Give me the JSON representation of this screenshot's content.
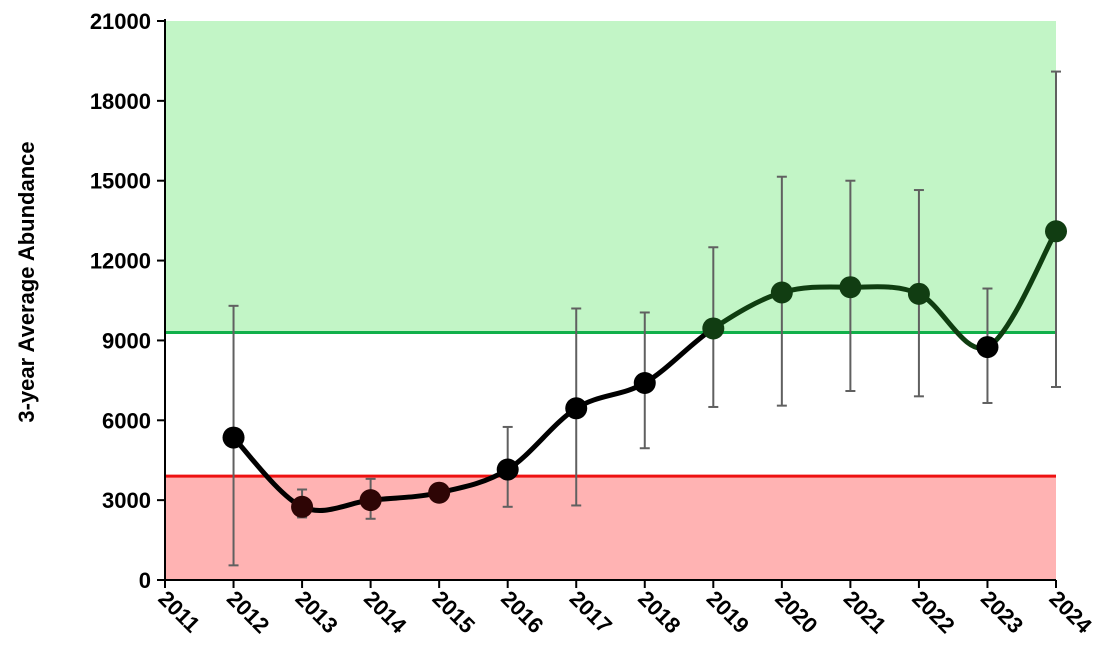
{
  "chart_data": {
    "type": "line",
    "title": "",
    "xlabel": "",
    "ylabel": "3-year Average Abundance",
    "xlim": [
      2011,
      2024
    ],
    "ylim": [
      0,
      21000
    ],
    "x_ticks": [
      "2011",
      "2012",
      "2013",
      "2014",
      "2015",
      "2016",
      "2017",
      "2018",
      "2019",
      "2020",
      "2021",
      "2022",
      "2023",
      "2024"
    ],
    "y_ticks": [
      "0",
      "3000",
      "6000",
      "9000",
      "12000",
      "15000",
      "18000",
      "21000"
    ],
    "grid": false,
    "legend": "none",
    "bands": [
      {
        "from": 0,
        "to": 3900,
        "color": "#ffb3b3"
      },
      {
        "from": 9300,
        "to": 21000,
        "color": "#c2f5c6"
      }
    ],
    "reference_lines": [
      {
        "y": 3900,
        "color": "#ee1111"
      },
      {
        "y": 9300,
        "color": "#11b04a"
      }
    ],
    "series": [
      {
        "x": [
          2012,
          2013,
          2014,
          2015,
          2016,
          2017,
          2018,
          2019,
          2020,
          2021,
          2022,
          2023,
          2024
        ],
        "y": [
          5350,
          2750,
          3000,
          3280,
          4150,
          6450,
          7400,
          9450,
          10800,
          11000,
          10750,
          8750,
          13100
        ],
        "error_low": [
          550,
          2350,
          2300,
          3280,
          2750,
          2800,
          4950,
          6500,
          6550,
          7100,
          6900,
          6650,
          7250
        ],
        "error_high": [
          10300,
          3400,
          3800,
          3280,
          5750,
          10200,
          10050,
          12500,
          15150,
          15000,
          14650,
          10950,
          19100
        ]
      }
    ],
    "colors": {
      "below_threshold_line": "#000000",
      "above_threshold_line": "#0f3d10",
      "low_marker": "#2e0505",
      "mid_marker": "#000000",
      "high_marker": "#113d12",
      "error_bar": "#606060"
    }
  }
}
